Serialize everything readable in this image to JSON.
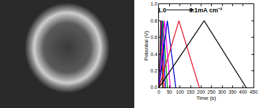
{
  "chart_data": {
    "type": "line",
    "x_label": "Time (s)",
    "y_label": "Potential (V)",
    "xlim": [
      0,
      450
    ],
    "xticks": [
      0,
      50,
      100,
      150,
      200,
      250,
      300,
      350,
      400,
      450
    ],
    "ylim": [
      0,
      1.0
    ],
    "yticks": [
      {
        "value": 0,
        "label": "0.0"
      },
      0.2,
      0.4,
      0.6,
      0.8,
      {
        "value": 1.0,
        "label": "1.0"
      }
    ],
    "grid": false,
    "annotations": [
      {
        "text": "1.0",
        "x": 14,
        "y": 0.93
      },
      {
        "text": "0.1mA cm⁻²",
        "x": 222,
        "y": 0.93
      }
    ],
    "arrow": {
      "from": [
        30,
        0.93
      ],
      "to": [
        168,
        0.93
      ]
    },
    "series": [
      {
        "color": "#000000",
        "x": [
          0,
          9,
          18
        ],
        "values": [
          0,
          0.8,
          0
        ]
      },
      {
        "color": "#ff0000",
        "x": [
          0,
          12,
          24
        ],
        "values": [
          0,
          0.8,
          0
        ]
      },
      {
        "color": "#0000ff",
        "x": [
          0,
          15,
          31
        ],
        "values": [
          0,
          0.8,
          0
        ]
      },
      {
        "color": "#00a000",
        "x": [
          0,
          20,
          40
        ],
        "values": [
          0,
          0.8,
          0
        ]
      },
      {
        "color": "#ff00ff",
        "x": [
          0,
          27,
          54
        ],
        "values": [
          0,
          0.8,
          0
        ]
      },
      {
        "color": "#0000cc",
        "x": [
          0,
          40,
          80
        ],
        "values": [
          0,
          0.8,
          0
        ]
      },
      {
        "color": "#e8102a",
        "x": [
          0,
          95,
          192
        ],
        "values": [
          0,
          0.8,
          0
        ]
      },
      {
        "color": "#000000",
        "x": [
          0,
          215,
          415
        ],
        "values": [
          0,
          0.8,
          0
        ]
      }
    ]
  }
}
